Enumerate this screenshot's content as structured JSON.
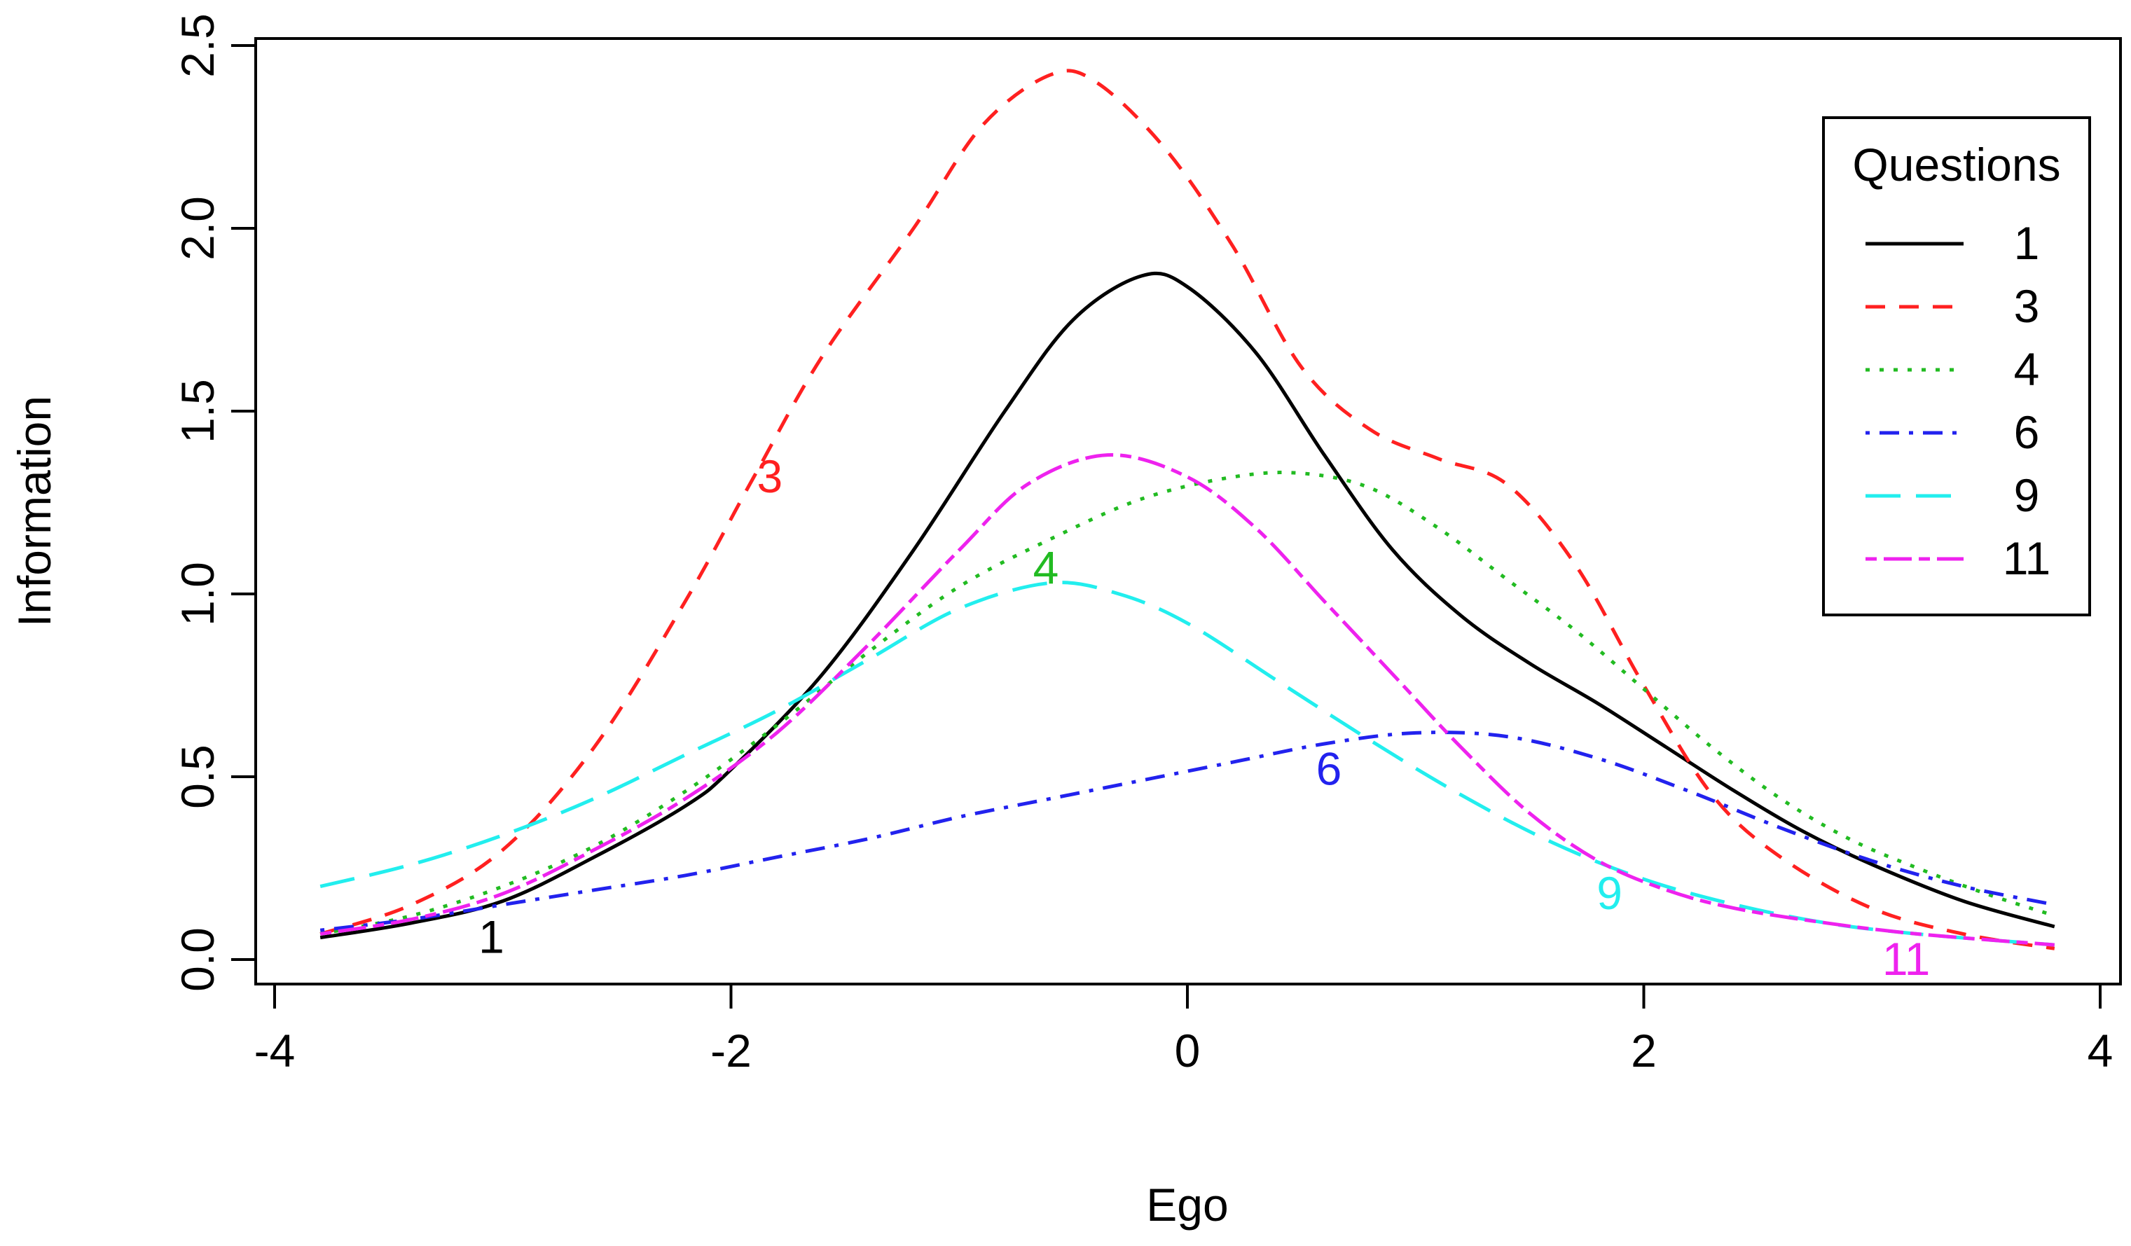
{
  "chart_data": {
    "type": "line",
    "title": "",
    "xlabel": "Ego",
    "ylabel": "Information",
    "xlim": [
      -4,
      4
    ],
    "ylim": [
      0,
      2.5
    ],
    "xticks": [
      "-4",
      "-2",
      "0",
      "2",
      "4"
    ],
    "yticks": [
      "0.0",
      "0.5",
      "1.0",
      "1.5",
      "2.0",
      "2.5"
    ],
    "grid": false,
    "legend": {
      "title": "Questions",
      "placement": "top-right"
    },
    "series": [
      {
        "name": "1",
        "color": "#000000",
        "dash": "solid",
        "label": {
          "text": "1",
          "x": -3.05,
          "y": 0.06
        },
        "points": [
          [
            -3.8,
            0.06
          ],
          [
            -3.4,
            0.1
          ],
          [
            -3.0,
            0.16
          ],
          [
            -2.6,
            0.28
          ],
          [
            -2.2,
            0.42
          ],
          [
            -2.0,
            0.52
          ],
          [
            -1.6,
            0.78
          ],
          [
            -1.2,
            1.12
          ],
          [
            -0.8,
            1.5
          ],
          [
            -0.5,
            1.75
          ],
          [
            -0.2,
            1.87
          ],
          [
            0.0,
            1.84
          ],
          [
            0.3,
            1.66
          ],
          [
            0.6,
            1.38
          ],
          [
            0.9,
            1.12
          ],
          [
            1.2,
            0.94
          ],
          [
            1.5,
            0.81
          ],
          [
            1.8,
            0.7
          ],
          [
            2.1,
            0.58
          ],
          [
            2.4,
            0.46
          ],
          [
            2.7,
            0.35
          ],
          [
            3.0,
            0.26
          ],
          [
            3.4,
            0.16
          ],
          [
            3.8,
            0.09
          ]
        ]
      },
      {
        "name": "3",
        "color": "#ff2020",
        "dash": "dashed",
        "label": {
          "text": "3",
          "x": -1.83,
          "y": 1.32
        },
        "points": [
          [
            -3.8,
            0.07
          ],
          [
            -3.4,
            0.15
          ],
          [
            -3.0,
            0.3
          ],
          [
            -2.6,
            0.58
          ],
          [
            -2.2,
            0.98
          ],
          [
            -1.9,
            1.32
          ],
          [
            -1.6,
            1.65
          ],
          [
            -1.2,
            2.0
          ],
          [
            -0.9,
            2.28
          ],
          [
            -0.6,
            2.42
          ],
          [
            -0.4,
            2.4
          ],
          [
            -0.1,
            2.22
          ],
          [
            0.2,
            1.95
          ],
          [
            0.5,
            1.62
          ],
          [
            0.8,
            1.45
          ],
          [
            1.1,
            1.37
          ],
          [
            1.4,
            1.3
          ],
          [
            1.7,
            1.08
          ],
          [
            2.0,
            0.75
          ],
          [
            2.3,
            0.45
          ],
          [
            2.6,
            0.28
          ],
          [
            3.0,
            0.14
          ],
          [
            3.4,
            0.07
          ],
          [
            3.8,
            0.03
          ]
        ]
      },
      {
        "name": "4",
        "color": "#22bb22",
        "dash": "dotted",
        "label": {
          "text": "4",
          "x": -0.62,
          "y": 1.07
        },
        "points": [
          [
            -3.8,
            0.07
          ],
          [
            -3.4,
            0.12
          ],
          [
            -3.0,
            0.2
          ],
          [
            -2.6,
            0.31
          ],
          [
            -2.2,
            0.46
          ],
          [
            -1.8,
            0.64
          ],
          [
            -1.4,
            0.84
          ],
          [
            -1.0,
            1.02
          ],
          [
            -0.6,
            1.15
          ],
          [
            -0.2,
            1.26
          ],
          [
            0.2,
            1.32
          ],
          [
            0.5,
            1.33
          ],
          [
            0.8,
            1.29
          ],
          [
            1.1,
            1.18
          ],
          [
            1.4,
            1.04
          ],
          [
            1.7,
            0.9
          ],
          [
            2.0,
            0.74
          ],
          [
            2.3,
            0.58
          ],
          [
            2.6,
            0.44
          ],
          [
            2.9,
            0.33
          ],
          [
            3.2,
            0.25
          ],
          [
            3.5,
            0.18
          ],
          [
            3.8,
            0.12
          ]
        ]
      },
      {
        "name": "6",
        "color": "#2222ee",
        "dash": "dashdot",
        "label": {
          "text": "6",
          "x": 0.62,
          "y": 0.52
        },
        "points": [
          [
            -3.8,
            0.08
          ],
          [
            -3.4,
            0.11
          ],
          [
            -3.0,
            0.15
          ],
          [
            -2.6,
            0.19
          ],
          [
            -2.2,
            0.23
          ],
          [
            -1.8,
            0.28
          ],
          [
            -1.4,
            0.33
          ],
          [
            -1.0,
            0.39
          ],
          [
            -0.6,
            0.44
          ],
          [
            -0.2,
            0.49
          ],
          [
            0.2,
            0.54
          ],
          [
            0.6,
            0.59
          ],
          [
            1.0,
            0.62
          ],
          [
            1.4,
            0.61
          ],
          [
            1.8,
            0.55
          ],
          [
            2.2,
            0.46
          ],
          [
            2.6,
            0.36
          ],
          [
            3.0,
            0.27
          ],
          [
            3.4,
            0.2
          ],
          [
            3.8,
            0.15
          ]
        ]
      },
      {
        "name": "9",
        "color": "#22eeee",
        "dash": "longdash",
        "label": {
          "text": "9",
          "x": 1.85,
          "y": 0.18
        },
        "points": [
          [
            -3.8,
            0.2
          ],
          [
            -3.4,
            0.26
          ],
          [
            -3.0,
            0.34
          ],
          [
            -2.6,
            0.44
          ],
          [
            -2.2,
            0.56
          ],
          [
            -1.8,
            0.68
          ],
          [
            -1.4,
            0.82
          ],
          [
            -1.0,
            0.96
          ],
          [
            -0.6,
            1.03
          ],
          [
            -0.3,
            1.0
          ],
          [
            0.0,
            0.92
          ],
          [
            0.4,
            0.76
          ],
          [
            0.8,
            0.6
          ],
          [
            1.2,
            0.45
          ],
          [
            1.6,
            0.32
          ],
          [
            2.0,
            0.22
          ],
          [
            2.4,
            0.15
          ],
          [
            2.8,
            0.1
          ],
          [
            3.2,
            0.07
          ],
          [
            3.8,
            0.04
          ]
        ]
      },
      {
        "name": "11",
        "color": "#ee22ee",
        "dash": "twodash",
        "label": {
          "text": "11",
          "x": 3.15,
          "y": 0.0
        },
        "points": [
          [
            -3.8,
            0.07
          ],
          [
            -3.4,
            0.11
          ],
          [
            -3.0,
            0.18
          ],
          [
            -2.6,
            0.3
          ],
          [
            -2.2,
            0.44
          ],
          [
            -1.8,
            0.62
          ],
          [
            -1.4,
            0.86
          ],
          [
            -1.0,
            1.12
          ],
          [
            -0.7,
            1.3
          ],
          [
            -0.35,
            1.38
          ],
          [
            0.0,
            1.32
          ],
          [
            0.3,
            1.18
          ],
          [
            0.6,
            0.98
          ],
          [
            0.9,
            0.78
          ],
          [
            1.2,
            0.58
          ],
          [
            1.5,
            0.4
          ],
          [
            1.8,
            0.27
          ],
          [
            2.1,
            0.19
          ],
          [
            2.4,
            0.14
          ],
          [
            2.8,
            0.1
          ],
          [
            3.2,
            0.07
          ],
          [
            3.8,
            0.04
          ]
        ]
      }
    ]
  }
}
